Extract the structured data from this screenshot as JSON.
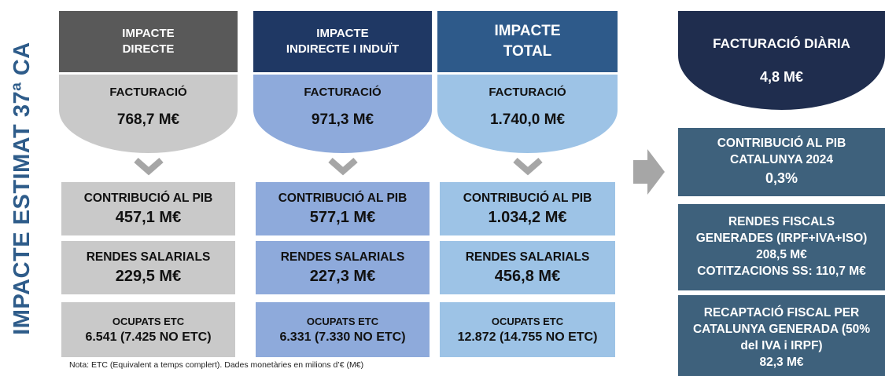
{
  "side_title": "IMPACTE ESTIMAT 37ª CA",
  "columns": [
    {
      "header": [
        "IMPACTE",
        "DIRECTE"
      ],
      "revenue_label": "FACTURACIÓ",
      "revenue": "768,7 M€",
      "gdp_label": "CONTRIBUCIÓ AL PIB",
      "gdp": "457,1 M€",
      "wages_label": "RENDES SALARIALS",
      "wages": "229,5 M€",
      "jobs_label": "OCUPATS ETC",
      "jobs": "6.541 (7.425 NO ETC)"
    },
    {
      "header": [
        "IMPACTE",
        "INDIRECTE I INDUÏT"
      ],
      "revenue_label": "FACTURACIÓ",
      "revenue": "971,3 M€",
      "gdp_label": "CONTRIBUCIÓ AL PIB",
      "gdp": "577,1 M€",
      "wages_label": "RENDES SALARIALS",
      "wages": "227,3 M€",
      "jobs_label": "OCUPATS ETC",
      "jobs": "6.331 (7.330 NO ETC)"
    },
    {
      "header": [
        "IMPACTE",
        "TOTAL"
      ],
      "revenue_label": "FACTURACIÓ",
      "revenue": "1.740,0 M€",
      "gdp_label": "CONTRIBUCIÓ AL PIB",
      "gdp": "1.034,2 M€",
      "wages_label": "RENDES SALARIALS",
      "wages": "456,8 M€",
      "jobs_label": "OCUPATS ETC",
      "jobs": "12.872 (14.755 NO ETC)"
    }
  ],
  "daily": {
    "label": "FACTURACIÓ DIÀRIA",
    "value": "4,8 M€"
  },
  "summary": [
    [
      "CONTRIBUCIÓ AL PIB",
      "CATALUNYA 2024",
      "0,3%"
    ],
    [
      "RENDES FISCALS",
      "GENERADES (IRPF+IVA+ISO)",
      "208,5 M€",
      "COTITZACIONS SS: 110,7 M€"
    ],
    [
      "RECAPTACIÓ FISCAL PER",
      "CATALUNYA GENERADA (50%",
      "del IVA i IRPF)",
      "82,3 M€"
    ]
  ],
  "note": "Nota: ETC (Equivalent a temps complert). Dades monetàries en milions d’€ (M€)"
}
